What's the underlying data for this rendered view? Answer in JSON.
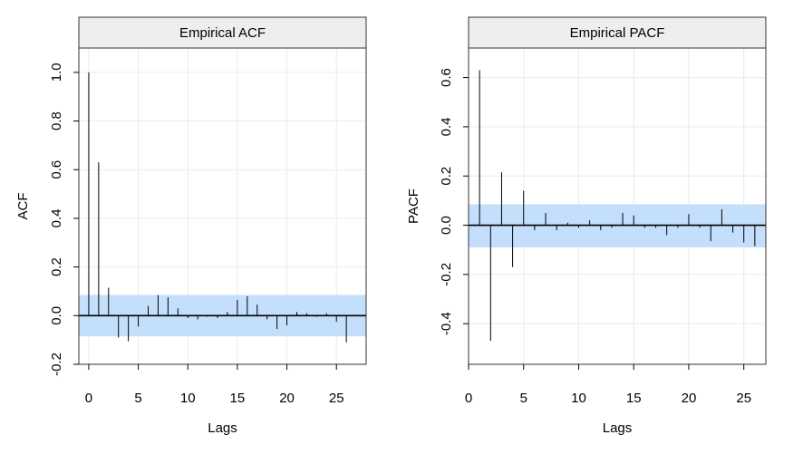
{
  "colors": {
    "band": "#c4dffb",
    "strip": "#eeeeee",
    "grid": "#ebebeb",
    "spike": "#000000"
  },
  "chart_data": [
    {
      "type": "bar",
      "title": "Empirical ACF",
      "xlabel": "Lags",
      "ylabel": "ACF",
      "xlim": [
        -1,
        28
      ],
      "ylim": [
        -0.2,
        1.1
      ],
      "xticks": [
        0,
        5,
        10,
        15,
        20,
        25
      ],
      "yticks": [
        -0.2,
        0.0,
        0.2,
        0.4,
        0.6,
        0.8,
        1.0
      ],
      "ytick_labels": [
        "-0.2",
        "0.0",
        "0.2",
        "0.4",
        "0.6",
        "0.8",
        "1.0"
      ],
      "confidence_band": [
        -0.085,
        0.085
      ],
      "lags": [
        0,
        1,
        2,
        3,
        4,
        5,
        6,
        7,
        8,
        9,
        10,
        11,
        12,
        13,
        14,
        15,
        16,
        17,
        18,
        19,
        20,
        21,
        22,
        23,
        24,
        25,
        26
      ],
      "values": [
        1.0,
        0.63,
        0.115,
        -0.09,
        -0.105,
        -0.045,
        0.04,
        0.085,
        0.075,
        0.03,
        -0.01,
        -0.015,
        -0.005,
        -0.01,
        0.015,
        0.065,
        0.08,
        0.045,
        -0.015,
        -0.055,
        -0.04,
        0.015,
        0.01,
        -0.005,
        0.01,
        -0.025,
        -0.11
      ]
    },
    {
      "type": "bar",
      "title": "Empirical PACF",
      "xlabel": "Lags",
      "ylabel": "PACF",
      "xlim": [
        0,
        27
      ],
      "ylim": [
        -0.565,
        0.72
      ],
      "xticks": [
        0,
        5,
        10,
        15,
        20,
        25
      ],
      "yticks": [
        -0.4,
        -0.2,
        0.0,
        0.2,
        0.4,
        0.6
      ],
      "ytick_labels": [
        "-0.4",
        "-0.2",
        "0.0",
        "0.2",
        "0.4",
        "0.6"
      ],
      "confidence_band": [
        -0.09,
        0.085
      ],
      "lags": [
        1,
        2,
        3,
        4,
        5,
        6,
        7,
        8,
        9,
        10,
        11,
        12,
        13,
        14,
        15,
        16,
        17,
        18,
        19,
        20,
        21,
        22,
        23,
        24,
        25,
        26
      ],
      "values": [
        0.63,
        -0.47,
        0.215,
        -0.17,
        0.14,
        -0.02,
        0.05,
        -0.02,
        0.01,
        -0.01,
        0.02,
        -0.02,
        -0.01,
        0.05,
        0.04,
        -0.01,
        -0.01,
        -0.04,
        -0.01,
        0.045,
        -0.01,
        -0.065,
        0.065,
        -0.03,
        -0.07,
        -0.085
      ]
    }
  ]
}
